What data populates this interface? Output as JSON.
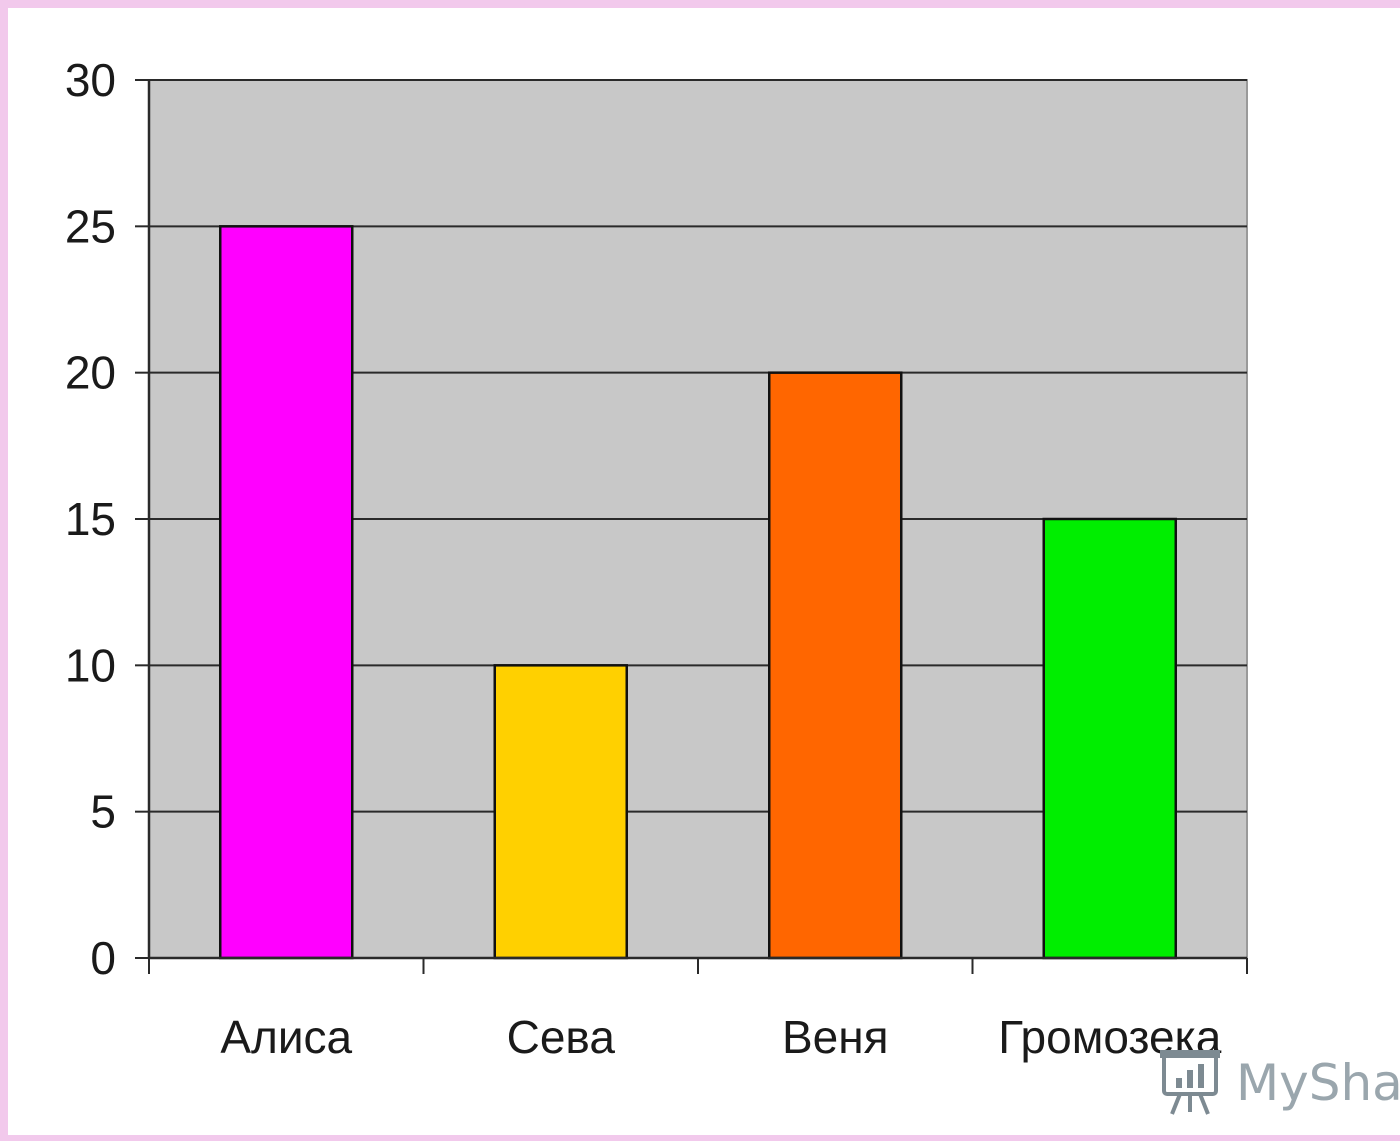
{
  "chart_data": {
    "type": "bar",
    "categories": [
      "Алиса",
      "Сева",
      "Веня",
      "Громозека"
    ],
    "values": [
      25,
      10,
      20,
      15
    ],
    "colors": [
      "#ff00ff",
      "#ffd000",
      "#ff6600",
      "#00ee00"
    ],
    "title": "",
    "xlabel": "",
    "ylabel": "",
    "ylim": [
      0,
      30
    ],
    "yticks": [
      0,
      5,
      10,
      15,
      20,
      25,
      30
    ],
    "grid": true,
    "plot_background": "#c8c8c8",
    "legend": "none"
  },
  "watermark": {
    "text": "MySha"
  }
}
